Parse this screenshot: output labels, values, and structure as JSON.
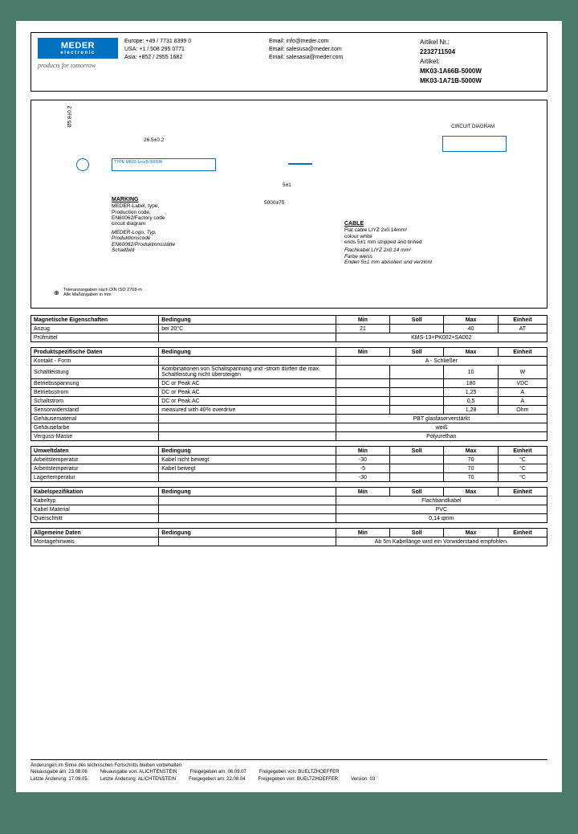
{
  "header": {
    "logo": {
      "main": "MEDER",
      "sub": "electronic"
    },
    "tagline": "products for tomorrow",
    "contacts": {
      "europe": {
        "label": "Europe:",
        "phone": "+49 / 7731 8399 0",
        "email_label": "Email:",
        "email": "info@meder.com"
      },
      "usa": {
        "label": "USA:",
        "phone": "+1 / 508 295 0771",
        "email_label": "Email:",
        "email": "salesusa@meder.com"
      },
      "asia": {
        "label": "Asia:",
        "phone": "+852 / 2955 1682",
        "email_label": "Email:",
        "email": "salesasia@meder.com"
      }
    },
    "article": {
      "nr_label": "Artikel Nr.:",
      "nr": "2232711504",
      "art_label": "Artikel:",
      "art1": "MK03-1A66B-5000W",
      "art2": "MK03-1A71B-5000W"
    }
  },
  "diagram": {
    "dim_v": "Ø5.8±0.2",
    "dim_h": "26.5±0.2",
    "body_text": "TYPE MK03-1xxxB-5000W",
    "dim_51": "5±1",
    "dim_5000": "5000±75",
    "circuit_label": "CIRCUIT DIAGRAM",
    "marking": {
      "title": "MARKING",
      "en": "MEDER-Label, type,\nProduction code,\nEN60062/Factory code\ncircuit diagram",
      "de": "MEDER-Logo, Typ,\nProduktionscode\nEN60062/Produktionsstätte\nSchaltbild"
    },
    "cable": {
      "title": "CABLE",
      "en": "Flat cable LIYZ 2x0.14mm²\ncolour white\nends 5±1 mm stripped and tinned",
      "de": "Flachkabel LIYZ 2x0.14 mm²\nFarbe weiss\nEnden 5±1 mm abisoliert und verzinnt"
    },
    "tol_note": "Toleranzangaben nach DIN ISO 2768-m\nAlle Maßangaben in mm"
  },
  "tables": [
    {
      "title": "Magnetische Eigenschaften",
      "headers": [
        "Bedingung",
        "Min",
        "Soll",
        "Max",
        "Einheit"
      ],
      "rows": [
        {
          "name": "Anzug",
          "cond": "bei 20°C",
          "min": "21",
          "soll": "",
          "max": "40",
          "unit": "AT"
        },
        {
          "name": "Prüfmittel",
          "cond": "",
          "span": "KMS-13+PK002+SA002"
        }
      ]
    },
    {
      "title": "Produktspezifische Daten",
      "headers": [
        "Bedingung",
        "Min",
        "Soll",
        "Max",
        "Einheit"
      ],
      "rows": [
        {
          "name": "Kontakt - Form",
          "cond": "",
          "span": "A - Schließer"
        },
        {
          "name": "Schaltleistung",
          "cond": "Kombinationen von Schaltspannung und -strom dürfen die max. Schaltleistung nicht übersteigen",
          "min": "",
          "soll": "",
          "max": "10",
          "unit": "W"
        },
        {
          "name": "Betriebsspannung",
          "cond": "DC or Peak AC",
          "min": "",
          "soll": "",
          "max": "180",
          "unit": "VDC"
        },
        {
          "name": "Betriebsstrom",
          "cond": "DC or Peak AC",
          "min": "",
          "soll": "",
          "max": "1,25",
          "unit": "A"
        },
        {
          "name": "Schaltstrom",
          "cond": "DC or Peak AC",
          "min": "",
          "soll": "",
          "max": "0,5",
          "unit": "A"
        },
        {
          "name": "Sensorwiderstand",
          "cond": "measured with 40% overdrive",
          "min": "",
          "soll": "",
          "max": "1,28",
          "unit": "Ohm"
        },
        {
          "name": "Gehäusematerial",
          "cond": "",
          "span": "PBT glasfaserverstärkt"
        },
        {
          "name": "Gehäusefarbe",
          "cond": "",
          "span": "weiß"
        },
        {
          "name": "Verguss-Masse",
          "cond": "",
          "span": "Polyurethan"
        }
      ]
    },
    {
      "title": "Umweltdaten",
      "headers": [
        "Bedingung",
        "Min",
        "Soll",
        "Max",
        "Einheit"
      ],
      "rows": [
        {
          "name": "Arbeitstemperatur",
          "cond": "Kabel nicht bewegt",
          "min": "-30",
          "soll": "",
          "max": "70",
          "unit": "°C"
        },
        {
          "name": "Arbeitstemperatur",
          "cond": "Kabel bewegt",
          "min": "-5",
          "soll": "",
          "max": "70",
          "unit": "°C"
        },
        {
          "name": "Lagertemperatur",
          "cond": "",
          "min": "-30",
          "soll": "",
          "max": "70",
          "unit": "°C"
        }
      ]
    },
    {
      "title": "Kabelspezifikation",
      "headers": [
        "Bedingung",
        "Min",
        "Soll",
        "Max",
        "Einheit"
      ],
      "rows": [
        {
          "name": "Kabeltyp",
          "cond": "",
          "span": "Flachbandkabel"
        },
        {
          "name": "Kabel Material",
          "cond": "",
          "span": "PVC"
        },
        {
          "name": "Querschnitt",
          "cond": "",
          "span": "0,14 qmm"
        }
      ]
    },
    {
      "title": "Allgemeine Daten",
      "headers": [
        "Bedingung",
        "Min",
        "Soll",
        "Max",
        "Einheit"
      ],
      "rows": [
        {
          "name": "Montagehinweis",
          "cond": "",
          "span": "Ab 5m Kabellänge wird ein Vorwiderstand empfohlen."
        }
      ]
    }
  ],
  "footer": {
    "line1": "Änderungen im Sinne des technischen Fortschritts bleiben vorbehalten",
    "neu_label": "Neuausgabe am:",
    "neu_date": "23.08.06",
    "neu_von_label": "Neuausgabe von:",
    "neu_von": "ALICHTENSTEIN",
    "frei_label": "Freigegeben am:",
    "frei_date": "06.09.07",
    "frei_von_label": "Freigegeben von:",
    "frei_von": "BUELTZHOEFFER",
    "last_label": "Letzte Änderung:",
    "last_date": "17.09.05",
    "last_von_label": "Letzte Änderung:",
    "last_von": "ALICHTENSTEIN",
    "frei2_label": "Freigegeben am:",
    "frei2_date": "22.08.04",
    "frei2_von_label": "Freigegeben von:",
    "frei2_von": "BUELTZHOEFFER",
    "version_label": "Version:",
    "version": "03"
  }
}
